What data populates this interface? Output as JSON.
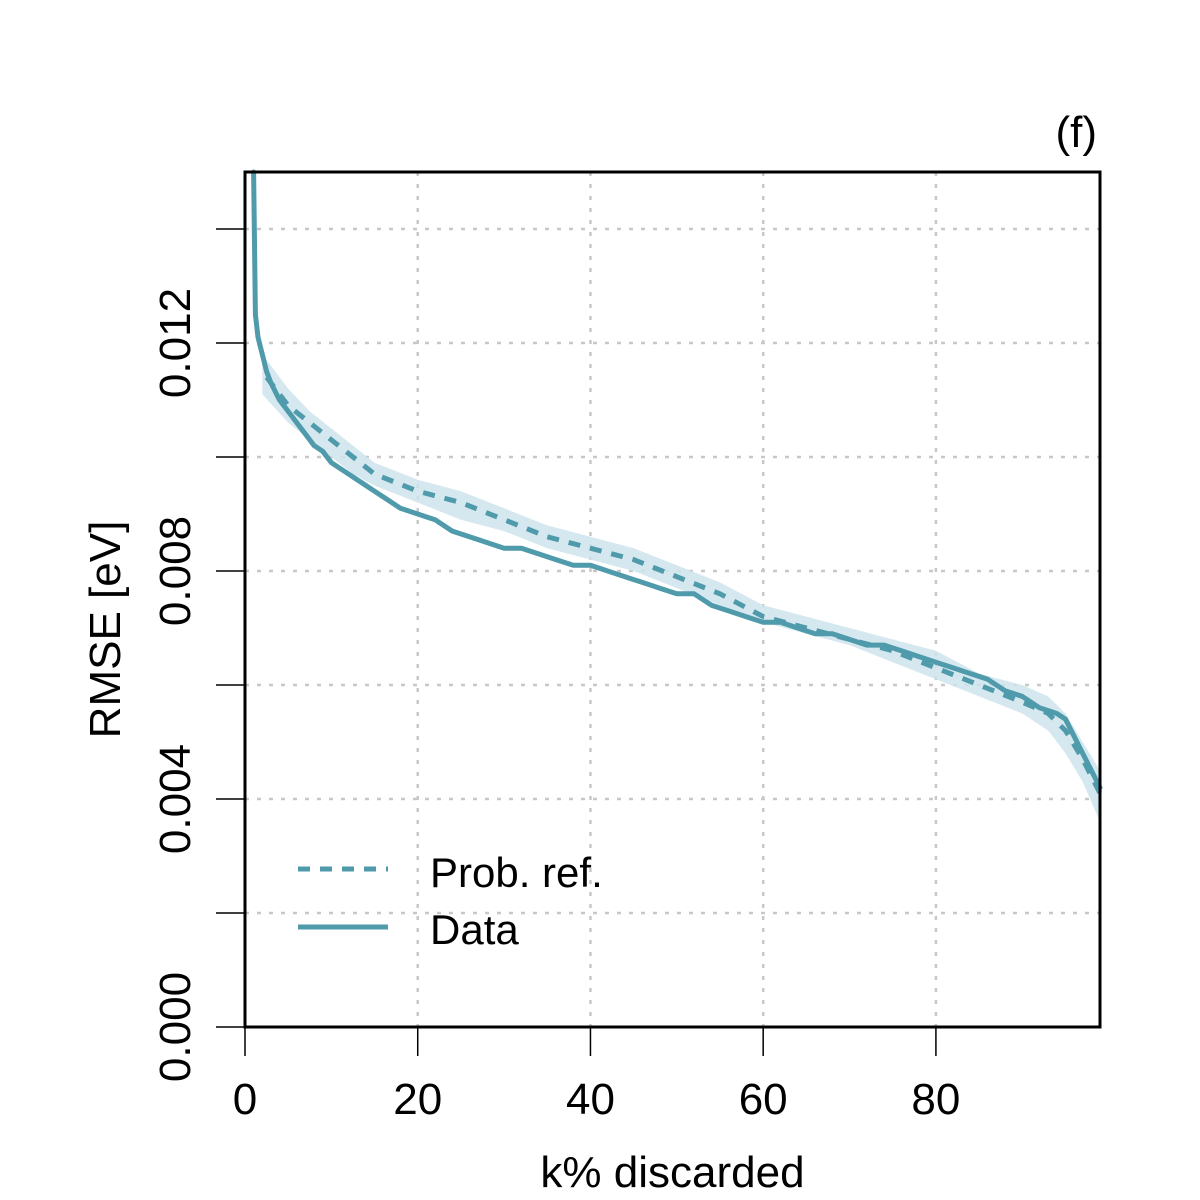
{
  "panel_label": "(f)",
  "colors": {
    "series": "#4f9aab",
    "band": "#cfe4ec",
    "grid": "#c8c8c8",
    "axis": "#000000"
  },
  "chart_data": {
    "type": "line",
    "title": "",
    "xlabel": "k% discarded",
    "ylabel": "RMSE [eV]",
    "xlim": [
      0,
      99
    ],
    "ylim": [
      0,
      0.015
    ],
    "x_ticks": [
      0,
      20,
      40,
      60,
      80
    ],
    "x_tick_labels": [
      "0",
      "20",
      "40",
      "60",
      "80"
    ],
    "y_ticks": [
      0,
      0.002,
      0.004,
      0.006,
      0.008,
      0.01,
      0.012,
      0.014
    ],
    "y_tick_labels": [
      "0.000",
      "",
      "0.004",
      "",
      "0.008",
      "",
      "0.012",
      ""
    ],
    "grid": true,
    "legend_position": "bottom-left",
    "series": [
      {
        "name": "Prob. ref.",
        "style": "dashed",
        "x": [
          2.5,
          5,
          7.5,
          10,
          12.5,
          15,
          20,
          25,
          30,
          35,
          40,
          45,
          50,
          55,
          60,
          65,
          70,
          75,
          80,
          85,
          90,
          93,
          95,
          97,
          99
        ],
        "values": [
          0.0114,
          0.0109,
          0.0106,
          0.0103,
          0.01,
          0.0097,
          0.0094,
          0.0092,
          0.0089,
          0.0086,
          0.0084,
          0.0082,
          0.0079,
          0.0076,
          0.0072,
          0.007,
          0.0068,
          0.0066,
          0.0063,
          0.006,
          0.0057,
          0.0055,
          0.0052,
          0.0047,
          0.0041
        ]
      },
      {
        "name": "Data",
        "style": "solid",
        "x": [
          1,
          1.2,
          1.5,
          2,
          2.5,
          3,
          4,
          5,
          6,
          7,
          8,
          9,
          10,
          12,
          14,
          16,
          18,
          20,
          22,
          24,
          26,
          28,
          30,
          32,
          34,
          36,
          38,
          40,
          42,
          44,
          46,
          48,
          50,
          52,
          54,
          56,
          58,
          60,
          62,
          64,
          66,
          68,
          70,
          72,
          74,
          76,
          78,
          80,
          82,
          84,
          86,
          88,
          90,
          92,
          94,
          95,
          96,
          97,
          98,
          99
        ],
        "values": [
          0.015,
          0.0125,
          0.0121,
          0.0118,
          0.0115,
          0.0113,
          0.011,
          0.0108,
          0.0106,
          0.0104,
          0.0102,
          0.0101,
          0.0099,
          0.0097,
          0.0095,
          0.0093,
          0.0091,
          0.009,
          0.0089,
          0.0087,
          0.0086,
          0.0085,
          0.0084,
          0.0084,
          0.0083,
          0.0082,
          0.0081,
          0.0081,
          0.008,
          0.0079,
          0.0078,
          0.0077,
          0.0076,
          0.0076,
          0.0074,
          0.0073,
          0.0072,
          0.0071,
          0.0071,
          0.007,
          0.0069,
          0.0069,
          0.0068,
          0.0067,
          0.0067,
          0.0066,
          0.0065,
          0.0064,
          0.0063,
          0.0062,
          0.0061,
          0.0059,
          0.0058,
          0.0056,
          0.0055,
          0.0054,
          0.0051,
          0.0048,
          0.0045,
          0.0042
        ]
      }
    ],
    "band": {
      "x": [
        2,
        5,
        7.5,
        10,
        12.5,
        15,
        20,
        25,
        30,
        35,
        40,
        45,
        50,
        55,
        60,
        65,
        70,
        75,
        80,
        85,
        90,
        93,
        95,
        97,
        99
      ],
      "upper": [
        0.0118,
        0.0112,
        0.0108,
        0.0105,
        0.0102,
        0.0099,
        0.0096,
        0.0094,
        0.0091,
        0.0088,
        0.0086,
        0.0084,
        0.0081,
        0.0078,
        0.0074,
        0.0072,
        0.007,
        0.0068,
        0.0066,
        0.0062,
        0.006,
        0.0058,
        0.0055,
        0.005,
        0.0045
      ],
      "lower": [
        0.0111,
        0.0106,
        0.0103,
        0.01,
        0.0097,
        0.0095,
        0.0092,
        0.0089,
        0.0087,
        0.0084,
        0.0082,
        0.008,
        0.0077,
        0.0074,
        0.0071,
        0.0069,
        0.0067,
        0.0064,
        0.0061,
        0.0058,
        0.0055,
        0.0052,
        0.0048,
        0.0043,
        0.0036
      ]
    }
  }
}
